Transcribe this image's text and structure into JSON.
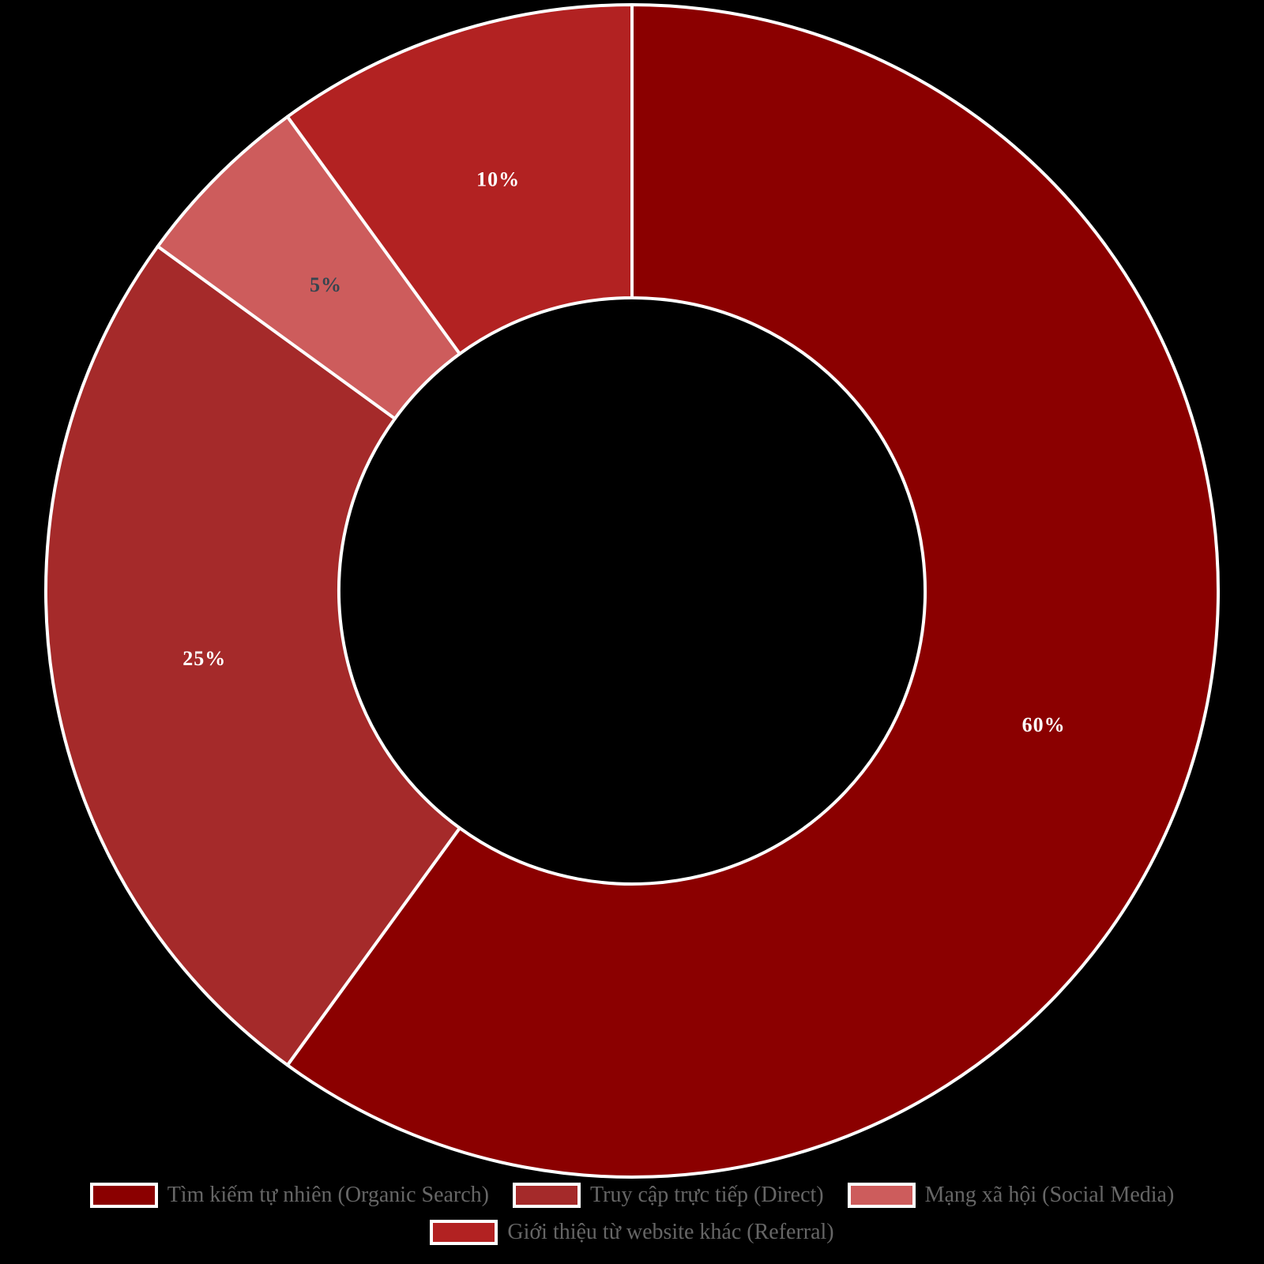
{
  "chart_data": {
    "type": "pie",
    "variant": "donut",
    "cutout_ratio": 0.5,
    "start_angle_deg": 0,
    "direction": "clockwise",
    "categories": [
      "Tìm kiếm tự nhiên (Organic Search)",
      "Truy cập trực tiếp (Direct)",
      "Mạng xã hội (Social Media)",
      "Giới thiệu từ website khác (Referral)"
    ],
    "values": [
      60,
      25,
      5,
      10
    ],
    "unit": "%",
    "data_labels": [
      "60%",
      "25%",
      "5%",
      "10%"
    ],
    "colors": [
      "#8B0000",
      "#A52A2A",
      "#CD5C5C",
      "#B22222"
    ],
    "label_colors": [
      "#FFFFFF",
      "#FFFFFF",
      "#36454F",
      "#FFFFFF"
    ],
    "ids": [
      "organic-search",
      "direct",
      "social-media",
      "referral"
    ],
    "border_color": "#FFFFFF",
    "background_color": "#000000",
    "legend_position": "bottom",
    "legend_text_color": "#666666",
    "title": ""
  }
}
